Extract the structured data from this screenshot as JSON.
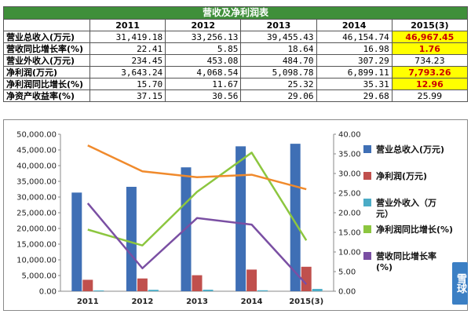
{
  "table": {
    "title": "营收及净利润表",
    "years": [
      "2011",
      "2012",
      "2013",
      "2014",
      "2015(3)"
    ],
    "rows": [
      {
        "label": "营业总收入(万元)",
        "values": [
          "31,419.18",
          "33,256.13",
          "39,455.43",
          "46,154.74",
          "46,967.45"
        ],
        "highlight_last": true
      },
      {
        "label": "营收同比增长率(%)",
        "values": [
          "22.41",
          "5.85",
          "18.64",
          "16.98",
          "1.76"
        ],
        "highlight_last": true
      },
      {
        "label": "营业外收入(万元)",
        "values": [
          "234.45",
          "453.08",
          "484.70",
          "307.29",
          "734.23"
        ],
        "highlight_last": false
      },
      {
        "label": "净利润(万元)",
        "values": [
          "3,643.24",
          "4,068.54",
          "5,098.78",
          "6,899.11",
          "7,793.26"
        ],
        "highlight_last": true
      },
      {
        "label": "净利润同比增长(%)",
        "values": [
          "15.70",
          "11.67",
          "25.32",
          "35.31",
          "12.96"
        ],
        "highlight_last": true
      },
      {
        "label": "净资产收益率(%)",
        "values": [
          "37.15",
          "30.56",
          "29.06",
          "29.68",
          "25.99"
        ],
        "highlight_last": false
      }
    ]
  },
  "colors": {
    "title_bg": "#3f8f3a",
    "highlight_bg": "#ffff00",
    "highlight_text": "#cc0000"
  },
  "watermark": "雪球",
  "chart_data": {
    "type": "bar",
    "categories": [
      "2011",
      "2012",
      "2013",
      "2014",
      "2015(3)"
    ],
    "y_left": {
      "min": 0,
      "max": 50000,
      "step": 5000,
      "ticks": [
        "0.00",
        "5,000.00",
        "10,000.00",
        "15,000.00",
        "20,000.00",
        "25,000.00",
        "30,000.00",
        "35,000.00",
        "40,000.00",
        "45,000.00",
        "50,000.00"
      ]
    },
    "y_right": {
      "min": 0,
      "max": 40,
      "step": 5,
      "ticks": [
        "0.00",
        "5.00",
        "10.00",
        "15.00",
        "20.00",
        "25.00",
        "30.00",
        "35.00",
        "40.00"
      ]
    },
    "series": [
      {
        "name": "营业总收入(万元)",
        "kind": "bar",
        "axis": "left",
        "color": "#3f6fb5",
        "values": [
          31419.18,
          33256.13,
          39455.43,
          46154.74,
          46967.45
        ]
      },
      {
        "name": "净利润(万元)",
        "kind": "bar",
        "axis": "left",
        "color": "#c0504d",
        "values": [
          3643.24,
          4068.54,
          5098.78,
          6899.11,
          7793.26
        ]
      },
      {
        "name": "营业外收入(万元)",
        "kind": "bar",
        "axis": "left",
        "color": "#4bacc6",
        "values": [
          234.45,
          453.08,
          484.7,
          307.29,
          734.23
        ]
      },
      {
        "name": "净利润同比增长(%)",
        "kind": "line",
        "axis": "right",
        "color": "#8cc63f",
        "values": [
          15.7,
          11.67,
          25.32,
          35.31,
          12.96
        ]
      },
      {
        "name": "营收同比增长率(%)",
        "kind": "line",
        "axis": "right",
        "color": "#7a4fa3",
        "values": [
          22.41,
          5.85,
          18.64,
          16.98,
          1.76
        ]
      },
      {
        "name": "净资产收益率(%)",
        "kind": "line",
        "axis": "right",
        "color": "#f08a2c",
        "values": [
          37.15,
          30.56,
          29.06,
          29.68,
          25.99
        ]
      }
    ],
    "legend": [
      {
        "name": "营业总收入(万元)",
        "color": "#3f6fb5",
        "lines": [
          "营业总收入(万元)"
        ]
      },
      {
        "name": "净利润(万元)",
        "color": "#c0504d",
        "lines": [
          "净利润(万元)"
        ]
      },
      {
        "name": "营业外收入(万元)",
        "color": "#4bacc6",
        "lines": [
          "营业外收入（万",
          "元）"
        ]
      },
      {
        "name": "净利润同比增长(%)",
        "color": "#8cc63f",
        "lines": [
          "净利润同比增长(%)"
        ]
      },
      {
        "name": "营收同比增长率(%)",
        "color": "#7a4fa3",
        "lines": [
          "营收同比增长率",
          "(%)"
        ]
      }
    ],
    "legend_position": "right",
    "grid": false
  }
}
